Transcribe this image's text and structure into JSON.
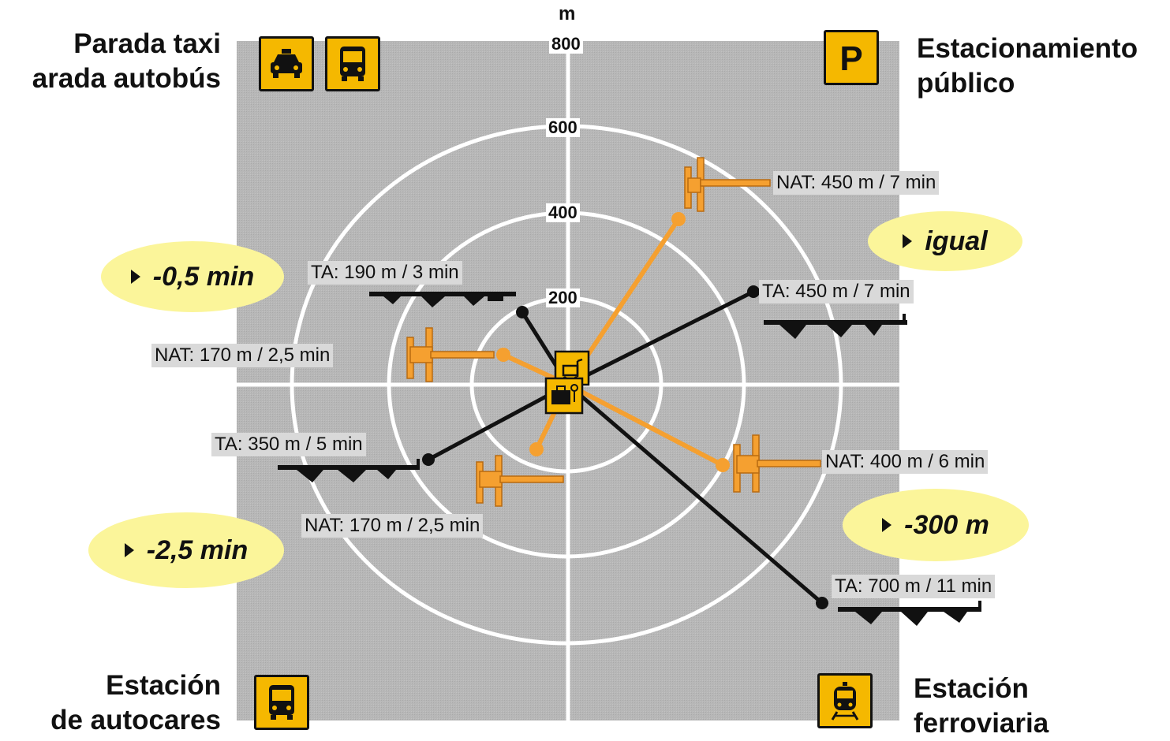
{
  "unit": "m",
  "rings": [
    "200",
    "400",
    "600",
    "800"
  ],
  "corners": {
    "top_left": [
      "Parada taxi",
      "arada autobús"
    ],
    "top_right": [
      "Estacionamiento",
      "público"
    ],
    "bottom_left": [
      "Estación",
      "de autocares"
    ],
    "bottom_right": [
      "Estación",
      "ferroviaria"
    ]
  },
  "icons": {
    "top_left": [
      "taxi-icon",
      "bus-icon"
    ],
    "top_right": [
      "parking-icon"
    ],
    "bottom_left": [
      "coach-icon"
    ],
    "bottom_right": [
      "train-icon"
    ],
    "center": [
      "trolley-icon",
      "luggage-icon"
    ]
  },
  "routes": {
    "nat_upper_right": "NAT: 450 m / 7 min",
    "ta_upper_right": "TA: 450 m / 7 min",
    "ta_upper_left": "TA: 190 m / 3 min",
    "nat_left": "NAT: 170 m / 2,5 min",
    "ta_lower_left": "TA: 350 m / 5 min",
    "nat_lower_left": "NAT: 170 m / 2,5 min",
    "nat_lower_right": "NAT: 400 m / 6 min",
    "ta_lower_right": "TA: 700 m / 11 min"
  },
  "bubbles": {
    "upper_left": "-0,5 min",
    "upper_right": "igual",
    "lower_left": "-2,5 min",
    "lower_right": "-300 m"
  },
  "colors": {
    "background": "#ffffff",
    "field": "#b4b4b4",
    "rings": "#ffffff",
    "nat_route": "#f5a030",
    "ta_route": "#111111",
    "icon_bg": "#f5b800",
    "bubble": "#fbf59a"
  }
}
